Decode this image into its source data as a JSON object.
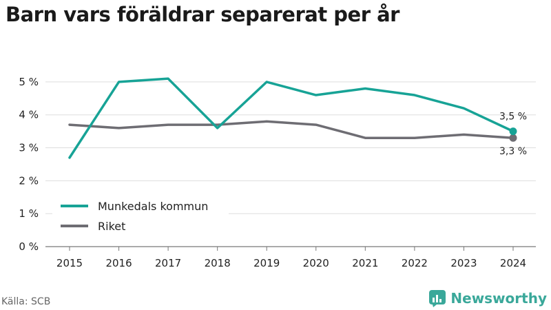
{
  "title": "Barn vars föräldrar separerat per år",
  "source": "Källa: SCB",
  "brand": {
    "name": "Newsworthy",
    "icon": "newsworthy-logo-icon",
    "color": "#3aa89a"
  },
  "chart_data": {
    "type": "line",
    "title": "Barn vars föräldrar separerat per år",
    "x": [
      "2015",
      "2016",
      "2017",
      "2018",
      "2019",
      "2020",
      "2021",
      "2022",
      "2023",
      "2024"
    ],
    "ylim": [
      0,
      5.5
    ],
    "yticks": [
      0,
      1,
      2,
      3,
      4,
      5
    ],
    "ytick_labels": [
      "0 %",
      "1 %",
      "2 %",
      "3 %",
      "4 %",
      "5 %"
    ],
    "grid": true,
    "legend_position": "bottom-left",
    "series": [
      {
        "name": "Munkedals kommun",
        "color": "#17a396",
        "values": [
          2.7,
          5.0,
          5.1,
          3.6,
          5.0,
          4.6,
          4.8,
          4.6,
          4.2,
          3.5
        ],
        "end_label": "3,5 %"
      },
      {
        "name": "Riket",
        "color": "#6e6d73",
        "values": [
          3.7,
          3.6,
          3.7,
          3.7,
          3.8,
          3.7,
          3.3,
          3.3,
          3.4,
          3.3
        ],
        "end_label": "3,3 %"
      }
    ]
  }
}
